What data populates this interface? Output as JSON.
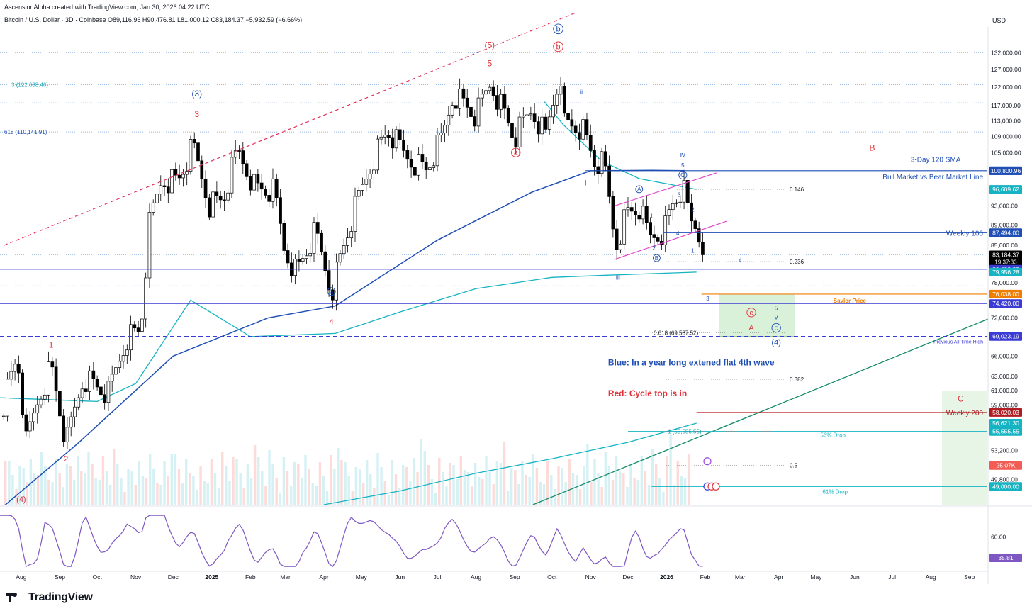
{
  "header": {
    "credit": "AscensionAlpha created with TradingView.com, Jan 30, 2026 04:22 UTC",
    "legend": "Bitcoin / U.S. Dollar · 3D · Coinbase  O89,116.96  H90,476.81  L81,000.12  C83,184.37  −5,932.59 (−6.66%)",
    "currency": "USD"
  },
  "footer": {
    "brand": "TradingView",
    "logo_icon": "tradingview-logo-icon"
  },
  "colors": {
    "up_candle": "#ffffff",
    "down_candle": "#000000",
    "sma": "#1f4fb5",
    "cyan_ma": "#16b3c2",
    "red_wave": "#e0323b",
    "blue_wave": "#1f4fb5",
    "channel": "#e040c8",
    "trend": "#138a6a"
  },
  "chart_data": {
    "type": "candlestick",
    "title": "",
    "y_scale": "log",
    "ylim": [
      47000,
      140000
    ],
    "x_ticks": [
      {
        "label": "Aug",
        "date": "2024-08-01"
      },
      {
        "label": "Sep",
        "date": "2024-09-01"
      },
      {
        "label": "Oct",
        "date": "2024-10-01"
      },
      {
        "label": "Nov",
        "date": "2024-11-01"
      },
      {
        "label": "Dec",
        "date": "2024-12-01"
      },
      {
        "label": "2025",
        "date": "2025-01-01"
      },
      {
        "label": "Feb",
        "date": "2025-02-01"
      },
      {
        "label": "Mar",
        "date": "2025-03-01"
      },
      {
        "label": "Apr",
        "date": "2025-04-01"
      },
      {
        "label": "May",
        "date": "2025-05-01"
      },
      {
        "label": "Jun",
        "date": "2025-06-01"
      },
      {
        "label": "Jul",
        "date": "2025-07-01"
      },
      {
        "label": "Aug",
        "date": "2025-08-01"
      },
      {
        "label": "Sep",
        "date": "2025-09-01"
      },
      {
        "label": "Oct",
        "date": "2025-10-01"
      },
      {
        "label": "Nov",
        "date": "2025-11-01"
      },
      {
        "label": "Dec",
        "date": "2025-12-01"
      },
      {
        "label": "2026",
        "date": "2026-01-01"
      },
      {
        "label": "Feb",
        "date": "2026-02-01"
      },
      {
        "label": "Mar",
        "date": "2026-03-01"
      },
      {
        "label": "Apr",
        "date": "2026-04-01"
      },
      {
        "label": "May",
        "date": "2026-05-01"
      },
      {
        "label": "Jun",
        "date": "2026-06-01"
      },
      {
        "label": "Jul",
        "date": "2026-07-01"
      },
      {
        "label": "Aug",
        "date": "2026-08-01"
      },
      {
        "label": "Sep",
        "date": "2026-09-01"
      }
    ],
    "y_ticks": [
      132000,
      127000,
      122000,
      117000,
      113000,
      109000,
      105000,
      93000,
      89000,
      85000,
      78000,
      72000,
      66000,
      63000,
      61000,
      59000,
      53200,
      49800
    ],
    "rsi_ticks": [
      60,
      40
    ],
    "price_path": [
      [
        "2024-07-15",
        57500
      ],
      [
        "2024-07-29",
        66000
      ],
      [
        "2024-08-05",
        54000
      ],
      [
        "2024-08-15",
        60000
      ],
      [
        "2024-08-25",
        64500
      ],
      [
        "2024-09-06",
        53800
      ],
      [
        "2024-09-20",
        63000
      ],
      [
        "2024-10-01",
        61500
      ],
      [
        "2024-10-10",
        60500
      ],
      [
        "2024-10-25",
        69000
      ],
      [
        "2024-11-05",
        70000
      ],
      [
        "2024-11-12",
        89000
      ],
      [
        "2024-11-22",
        99000
      ],
      [
        "2024-12-05",
        98500
      ],
      [
        "2024-12-17",
        106500
      ],
      [
        "2024-12-30",
        93500
      ],
      [
        "2025-01-10",
        94500
      ],
      [
        "2025-01-22",
        105500
      ],
      [
        "2025-02-05",
        97000
      ],
      [
        "2025-02-20",
        96000
      ],
      [
        "2025-02-28",
        84500
      ],
      [
        "2025-03-10",
        80000
      ],
      [
        "2025-03-25",
        87500
      ],
      [
        "2025-04-07",
        76500
      ],
      [
        "2025-04-20",
        87500
      ],
      [
        "2025-05-10",
        103500
      ],
      [
        "2025-05-22",
        110500
      ],
      [
        "2025-06-05",
        104500
      ],
      [
        "2025-06-22",
        101000
      ],
      [
        "2025-07-05",
        108500
      ],
      [
        "2025-07-14",
        120500
      ],
      [
        "2025-08-01",
        114000
      ],
      [
        "2025-08-13",
        123500
      ],
      [
        "2025-09-01",
        108500
      ],
      [
        "2025-09-15",
        116000
      ],
      [
        "2025-09-26",
        109500
      ],
      [
        "2025-10-06",
        124500
      ],
      [
        "2025-10-10",
        113000
      ],
      [
        "2025-10-25",
        111500
      ],
      [
        "2025-11-04",
        103000
      ],
      [
        "2025-11-12",
        102000
      ],
      [
        "2025-11-21",
        85000
      ],
      [
        "2025-11-30",
        91500
      ],
      [
        "2025-12-10",
        92500
      ],
      [
        "2025-12-18",
        86500
      ],
      [
        "2025-12-30",
        88000
      ],
      [
        "2026-01-06",
        93500
      ],
      [
        "2026-01-14",
        97000
      ],
      [
        "2026-01-20",
        89500
      ],
      [
        "2026-01-26",
        88500
      ],
      [
        "2026-01-30",
        83184.37
      ]
    ],
    "series": [
      {
        "name": "3-Day 120 SMA",
        "points": [
          [
            "2024-07-15",
            46500
          ],
          [
            "2024-09-15",
            54000
          ],
          [
            "2024-12-01",
            66000
          ],
          [
            "2025-02-15",
            72000
          ],
          [
            "2025-04-10",
            74000
          ],
          [
            "2025-07-01",
            86000
          ],
          [
            "2025-09-15",
            96000
          ],
          [
            "2025-11-01",
            100800
          ],
          [
            "2025-12-20",
            100900
          ],
          [
            "2026-01-15",
            100803.47
          ]
        ]
      },
      {
        "name": "",
        "points": [
          [
            "2024-07-15",
            60000
          ],
          [
            "2024-10-01",
            59500
          ],
          [
            "2024-11-01",
            62000
          ],
          [
            "2024-12-15",
            75000
          ],
          [
            "2025-02-01",
            69000
          ],
          [
            "2025-04-10",
            69500
          ],
          [
            "2025-06-01",
            73000
          ],
          [
            "2025-08-01",
            77000
          ],
          [
            "2025-10-01",
            79000
          ],
          [
            "2025-11-15",
            79400
          ],
          [
            "2026-01-25",
            79956.28
          ]
        ]
      },
      {
        "name": "",
        "points": [
          [
            "2025-09-25",
            118000
          ],
          [
            "2025-10-10",
            112000
          ],
          [
            "2025-11-10",
            103000
          ],
          [
            "2025-12-10",
            99000
          ],
          [
            "2026-01-25",
            96609.62
          ]
        ]
      },
      {
        "name": "",
        "points": [
          [
            "2025-04-01",
            47000
          ],
          [
            "2025-06-01",
            48500
          ],
          [
            "2025-08-01",
            50500
          ],
          [
            "2025-10-01",
            52200
          ],
          [
            "2025-12-01",
            54200
          ],
          [
            "2026-01-25",
            56621.3
          ]
        ]
      }
    ],
    "h_lines": [
      {
        "y": 100800.96,
        "label": "Bull Market vs Bear Market Line",
        "color": "#1f4fb5",
        "style": "solid",
        "from": "2025-10-28",
        "to": "2026-09-15"
      },
      {
        "y": 87494,
        "label": "Weekly 100",
        "color": "#1f4fb5",
        "style": "solid",
        "from": "2025-12-30",
        "to": "2026-09-15"
      },
      {
        "y": 80493.32,
        "label": "",
        "color": "#3a3ad4",
        "style": "solid",
        "from": "2024-07-15",
        "to": "2026-09-15"
      },
      {
        "y": 74420,
        "label": "",
        "color": "#3a3ad4",
        "style": "solid",
        "from": "2024-07-15",
        "to": "2026-09-15"
      },
      {
        "y": 76038,
        "label": "Saylor Price",
        "color": "#ef7d00",
        "style": "solid",
        "from": "2026-01-29",
        "to": "2026-09-15"
      },
      {
        "y": 69023.19,
        "label": "Previous All Time High",
        "color": "#3a3ad4",
        "style": "dashed",
        "from": "2024-07-15",
        "to": "2026-09-15"
      },
      {
        "y": 58020.03,
        "label": "Weekly 200",
        "color": "#b01e23",
        "style": "solid",
        "from": "2026-01-25",
        "to": "2026-09-15"
      },
      {
        "y": 55555.55,
        "label": "56% Drop",
        "color": "#16b3c2",
        "style": "solid",
        "from": "2025-12-01",
        "to": "2026-09-15"
      },
      {
        "y": 49000,
        "label": "61% Drop",
        "color": "#16b3c2",
        "style": "solid",
        "from": "2025-12-20",
        "to": "2026-09-15"
      }
    ],
    "dotted_levels": [
      {
        "y": 132000,
        "label": ""
      },
      {
        "y": 122688.46,
        "label": "3 (122,688.46)"
      },
      {
        "y": 117700,
        "label": ""
      },
      {
        "y": 110141.91,
        "label": "618 (110,141.91)"
      },
      {
        "y": 83184.37,
        "label": ""
      },
      {
        "y": 77500,
        "label": ""
      }
    ],
    "fib_levels": [
      {
        "y": 96609.62,
        "label": "0.146"
      },
      {
        "y": 81900,
        "label": "0.236"
      },
      {
        "y": 62600,
        "label": "0.382"
      },
      {
        "y": 51400,
        "label": "0.5"
      },
      {
        "y": 69587.52,
        "label": "0.618 (69,587.52)"
      },
      {
        "y": 55555.55,
        "label": "1 (55,555.55)"
      }
    ],
    "price_badges": [
      {
        "y": 100803.47,
        "label": "100,803.47",
        "bg": "#1f4fb5"
      },
      {
        "y": 100800.96,
        "label": "100,800.96",
        "bg": "#1f4fb5"
      },
      {
        "y": 96609.62,
        "label": "96,609.62",
        "bg": "#16b3c2"
      },
      {
        "y": 87494,
        "label": "87,494.00",
        "bg": "#1f4fb5"
      },
      {
        "y": 83184.37,
        "label": "83,184.37",
        "sub": "19:37:33",
        "bg": "#000000"
      },
      {
        "y": 80493.32,
        "label": "80,493.32",
        "bg": "#3a3ad4"
      },
      {
        "y": 79956.28,
        "label": "79,956.28",
        "bg": "#16b3c2"
      },
      {
        "y": 76038,
        "label": "76,038.00",
        "bg": "#ef7d00"
      },
      {
        "y": 74420,
        "label": "74,420.00",
        "bg": "#3a3ad4"
      },
      {
        "y": 69023.19,
        "label": "69,023.19",
        "bg": "#3a3ad4"
      },
      {
        "y": 58020.03,
        "label": "58,020.03",
        "bg": "#b01e23"
      },
      {
        "y": 56621.3,
        "label": "56,621.30",
        "bg": "#16b3c2"
      },
      {
        "y": 55555.55,
        "label": "55,555.55",
        "bg": "#16b3c2"
      },
      {
        "y": 51400,
        "label": "25.07K",
        "bg": "#f25c54"
      },
      {
        "y": 49000,
        "label": "49,000.00",
        "bg": "#16b3c2"
      }
    ],
    "rsi_value": "35.81",
    "annotations": [
      {
        "text": "(3)",
        "date": "2024-12-20",
        "y": 119500,
        "color": "#1f4fb5",
        "size": 12
      },
      {
        "text": "3",
        "date": "2024-12-20",
        "y": 114000,
        "color": "#e0323b",
        "size": 12
      },
      {
        "text": "(5)",
        "date": "2025-08-12",
        "y": 133500,
        "color": "#e0323b",
        "size": 12
      },
      {
        "text": "5",
        "date": "2025-08-12",
        "y": 128000,
        "color": "#e0323b",
        "size": 12
      },
      {
        "text": "b",
        "date": "2025-10-06",
        "y": 138500,
        "color": "#1f4fb5",
        "size": 11,
        "circle": true
      },
      {
        "text": "b",
        "date": "2025-10-06",
        "y": 133000,
        "color": "#e0323b",
        "size": 11,
        "circle": true
      },
      {
        "text": "a",
        "date": "2025-09-02",
        "y": 104500,
        "color": "#e0323b",
        "size": 10,
        "circle": true
      },
      {
        "text": "ii",
        "date": "2025-10-25",
        "y": 120000,
        "color": "#1f4fb5",
        "size": 10
      },
      {
        "text": "i",
        "date": "2025-10-28",
        "y": 97500,
        "color": "#1f4fb5",
        "size": 10
      },
      {
        "text": "iv",
        "date": "2026-01-14",
        "y": 104000,
        "color": "#1f4fb5",
        "size": 10
      },
      {
        "text": "5",
        "date": "2026-01-14",
        "y": 101600,
        "color": "#1f4fb5",
        "size": 8
      },
      {
        "text": "C",
        "date": "2026-01-14",
        "y": 99300,
        "color": "#1f4fb5",
        "size": 9,
        "circle": true
      },
      {
        "text": "A",
        "date": "2025-12-10",
        "y": 96200,
        "color": "#1f4fb5",
        "size": 8,
        "circle": true
      },
      {
        "text": "B",
        "date": "2025-12-24",
        "y": 82200,
        "color": "#1f4fb5",
        "size": 8,
        "circle": true
      },
      {
        "text": "3",
        "date": "2026-01-11",
        "y": 95000,
        "color": "#1f4fb5",
        "size": 8
      },
      {
        "text": "1",
        "date": "2025-12-20",
        "y": 90500,
        "color": "#1f4fb5",
        "size": 8
      },
      {
        "text": "4",
        "date": "2026-01-10",
        "y": 87000,
        "color": "#1f4fb5",
        "size": 8
      },
      {
        "text": "2",
        "date": "2026-01-22",
        "y": 91800,
        "color": "#1f4fb5",
        "size": 8
      },
      {
        "text": "2",
        "date": "2025-12-22",
        "y": 84100,
        "color": "#1f4fb5",
        "size": 8
      },
      {
        "text": "1",
        "date": "2026-01-22",
        "y": 83600,
        "color": "#1f4fb5",
        "size": 8
      },
      {
        "text": "4",
        "date": "2026-02-29",
        "y": 81700,
        "color": "#1f4fb5",
        "size": 8
      },
      {
        "text": "iii",
        "date": "2025-11-23",
        "y": 78600,
        "color": "#1f4fb5",
        "size": 9
      },
      {
        "text": "B",
        "date": "2026-06-15",
        "y": 105500,
        "color": "#e0323b",
        "size": 12
      },
      {
        "text": "3-Day 120 SMA",
        "date": "2026-08-05",
        "y": 102800,
        "color": "#1f4fb5",
        "size": 10
      },
      {
        "text": "a",
        "date": "2025-04-07",
        "y": 76100,
        "color": "#1f4fb5",
        "size": 9,
        "circle": true
      },
      {
        "text": "4",
        "date": "2025-04-07",
        "y": 71000,
        "color": "#e0323b",
        "size": 11
      },
      {
        "text": "1",
        "date": "2024-08-25",
        "y": 67300,
        "color": "#e0323b",
        "size": 12
      },
      {
        "text": "2",
        "date": "2024-09-06",
        "y": 51900,
        "color": "#e0323b",
        "size": 11
      },
      {
        "text": "(4)",
        "date": "2024-08-01",
        "y": 47300,
        "color": "#e0323b",
        "size": 11
      },
      {
        "text": "3",
        "date": "2026-02-03",
        "y": 74900,
        "color": "#1f4fb5",
        "size": 8
      },
      {
        "text": "c",
        "date": "2026-03-10",
        "y": 72500,
        "color": "#e0323b",
        "size": 10,
        "circle": true
      },
      {
        "text": "A",
        "date": "2026-03-10",
        "y": 70000,
        "color": "#e0323b",
        "size": 11
      },
      {
        "text": "5",
        "date": "2026-03-30",
        "y": 73300,
        "color": "#1f4fb5",
        "size": 8
      },
      {
        "text": "v",
        "date": "2026-03-30",
        "y": 71800,
        "color": "#1f4fb5",
        "size": 9
      },
      {
        "text": "c",
        "date": "2026-03-30",
        "y": 70000,
        "color": "#1f4fb5",
        "size": 10,
        "circle": true
      },
      {
        "text": "(4)",
        "date": "2026-03-30",
        "y": 67700,
        "color": "#1f4fb5",
        "size": 11
      },
      {
        "text": "C",
        "date": "2026-08-25",
        "y": 59500,
        "color": "#e0323b",
        "size": 12
      }
    ],
    "notes": [
      {
        "text": "Blue: In a year long extened flat 4th wave",
        "date": "2025-11-15",
        "y": 64600,
        "color": "#1f4fb5"
      },
      {
        "text": "Red: Cycle top is in",
        "date": "2025-11-15",
        "y": 60200,
        "color": "#e0323b"
      }
    ]
  }
}
